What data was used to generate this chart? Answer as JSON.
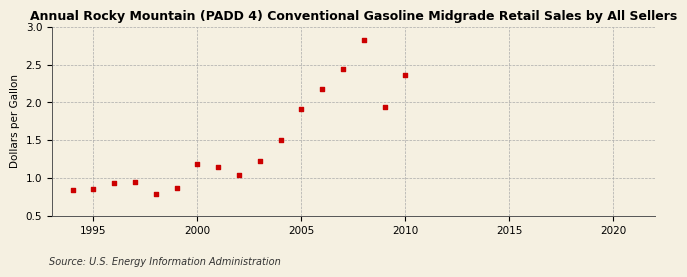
{
  "title": "Annual Rocky Mountain (PADD 4) Conventional Gasoline Midgrade Retail Sales by All Sellers",
  "ylabel": "Dollars per Gallon",
  "source": "Source: U.S. Energy Information Administration",
  "background_color": "#f5f0e1",
  "marker_color": "#cc0000",
  "years": [
    1994,
    1995,
    1996,
    1997,
    1998,
    1999,
    2000,
    2001,
    2002,
    2003,
    2004,
    2005,
    2006,
    2007,
    2008,
    2009,
    2010
  ],
  "values": [
    0.84,
    0.85,
    0.93,
    0.95,
    0.79,
    0.87,
    1.19,
    1.15,
    1.04,
    1.23,
    1.5,
    1.91,
    2.17,
    2.44,
    2.82,
    1.94,
    2.36
  ],
  "xlim": [
    1993,
    2022
  ],
  "ylim": [
    0.5,
    3.0
  ],
  "xticks": [
    1995,
    2000,
    2005,
    2010,
    2015,
    2020
  ],
  "yticks": [
    0.5,
    1.0,
    1.5,
    2.0,
    2.5,
    3.0
  ],
  "title_fontsize": 9,
  "label_fontsize": 7.5,
  "tick_fontsize": 7.5,
  "source_fontsize": 7
}
